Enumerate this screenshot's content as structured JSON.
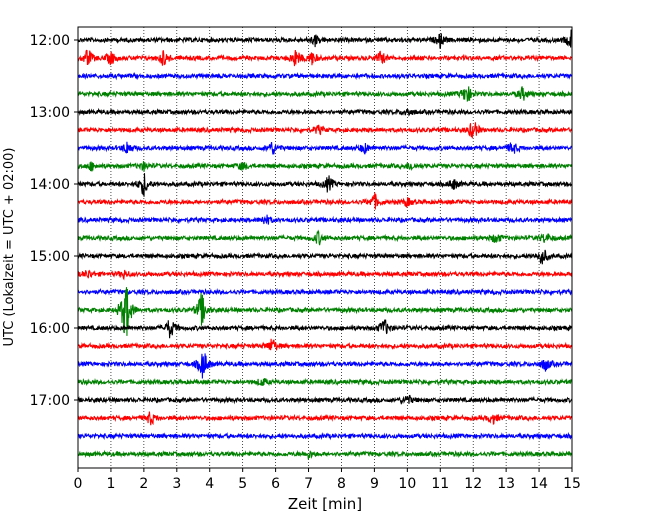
{
  "chart_data": {
    "type": "line",
    "title": "",
    "xlabel": "Zeit  [min]",
    "ylabel": "UTC (Lokalzeit = UTC + 02:00)",
    "xlim": [
      0,
      15
    ],
    "x_ticks": [
      "0",
      "1",
      "2",
      "3",
      "4",
      "5",
      "6",
      "7",
      "8",
      "9",
      "10",
      "11",
      "12",
      "13",
      "14",
      "15"
    ],
    "y_tick_labels": [
      "12:00",
      "13:00",
      "14:00",
      "15:00",
      "16:00",
      "17:00"
    ],
    "grid": "vertical dotted",
    "line_colors": [
      "#000000",
      "#ff0000",
      "#0000ff",
      "#008000"
    ],
    "rows": [
      {
        "start": "12:00",
        "color": "#000000",
        "events": [
          [
            7.2,
            0.4
          ],
          [
            11.0,
            0.5
          ],
          [
            15.0,
            0.9
          ]
        ]
      },
      {
        "start": "12:15",
        "color": "#ff0000",
        "events": [
          [
            0.3,
            0.7
          ],
          [
            1.0,
            0.5
          ],
          [
            2.6,
            0.6
          ],
          [
            6.6,
            0.7
          ],
          [
            7.1,
            0.5
          ],
          [
            9.2,
            0.5
          ]
        ]
      },
      {
        "start": "12:30",
        "color": "#0000ff",
        "events": []
      },
      {
        "start": "12:45",
        "color": "#008000",
        "events": [
          [
            11.8,
            0.8
          ],
          [
            13.5,
            0.5
          ]
        ]
      },
      {
        "start": "13:00",
        "color": "#000000",
        "events": [
          [
            10.0,
            0.3
          ]
        ]
      },
      {
        "start": "13:15",
        "color": "#ff0000",
        "events": [
          [
            7.3,
            0.3
          ],
          [
            12.0,
            0.8
          ]
        ]
      },
      {
        "start": "13:30",
        "color": "#0000ff",
        "events": [
          [
            1.5,
            0.5
          ],
          [
            5.9,
            0.5
          ],
          [
            8.7,
            0.4
          ],
          [
            13.2,
            0.5
          ]
        ]
      },
      {
        "start": "13:45",
        "color": "#008000",
        "events": [
          [
            0.4,
            0.3
          ],
          [
            2.0,
            0.3
          ],
          [
            5.0,
            0.3
          ],
          [
            10.1,
            0.3
          ]
        ]
      },
      {
        "start": "14:00",
        "color": "#000000",
        "events": [
          [
            2.0,
            0.9
          ],
          [
            7.6,
            0.6
          ],
          [
            11.4,
            0.4
          ]
        ]
      },
      {
        "start": "14:15",
        "color": "#ff0000",
        "events": [
          [
            9.0,
            0.6
          ],
          [
            10.0,
            0.3
          ]
        ]
      },
      {
        "start": "14:30",
        "color": "#0000ff",
        "events": [
          [
            5.7,
            0.4
          ]
        ]
      },
      {
        "start": "14:45",
        "color": "#008000",
        "events": [
          [
            7.3,
            0.5
          ],
          [
            12.7,
            0.4
          ],
          [
            14.2,
            0.4
          ]
        ]
      },
      {
        "start": "15:00",
        "color": "#000000",
        "events": [
          [
            14.1,
            0.7
          ]
        ]
      },
      {
        "start": "15:15",
        "color": "#ff0000",
        "events": [
          [
            0.3,
            0.3
          ],
          [
            1.4,
            0.3
          ]
        ]
      },
      {
        "start": "15:30",
        "color": "#0000ff",
        "events": []
      },
      {
        "start": "15:45",
        "color": "#008000",
        "events": [
          [
            1.45,
            2.6
          ],
          [
            3.75,
            1.3
          ]
        ]
      },
      {
        "start": "16:00",
        "color": "#000000",
        "events": [
          [
            2.8,
            0.8
          ],
          [
            9.3,
            0.7
          ]
        ]
      },
      {
        "start": "16:15",
        "color": "#ff0000",
        "events": [
          [
            5.9,
            0.6
          ]
        ]
      },
      {
        "start": "16:30",
        "color": "#0000ff",
        "events": [
          [
            3.8,
            1.2
          ],
          [
            14.2,
            0.5
          ]
        ]
      },
      {
        "start": "16:45",
        "color": "#008000",
        "events": [
          [
            5.6,
            0.3
          ]
        ]
      },
      {
        "start": "17:00",
        "color": "#000000",
        "events": [
          [
            10.0,
            0.4
          ]
        ]
      },
      {
        "start": "17:15",
        "color": "#ff0000",
        "events": [
          [
            2.2,
            0.5
          ],
          [
            12.6,
            0.4
          ]
        ]
      },
      {
        "start": "17:30",
        "color": "#0000ff",
        "events": []
      },
      {
        "start": "17:45",
        "color": "#008000",
        "events": [
          [
            7.0,
            0.3
          ]
        ]
      }
    ]
  }
}
